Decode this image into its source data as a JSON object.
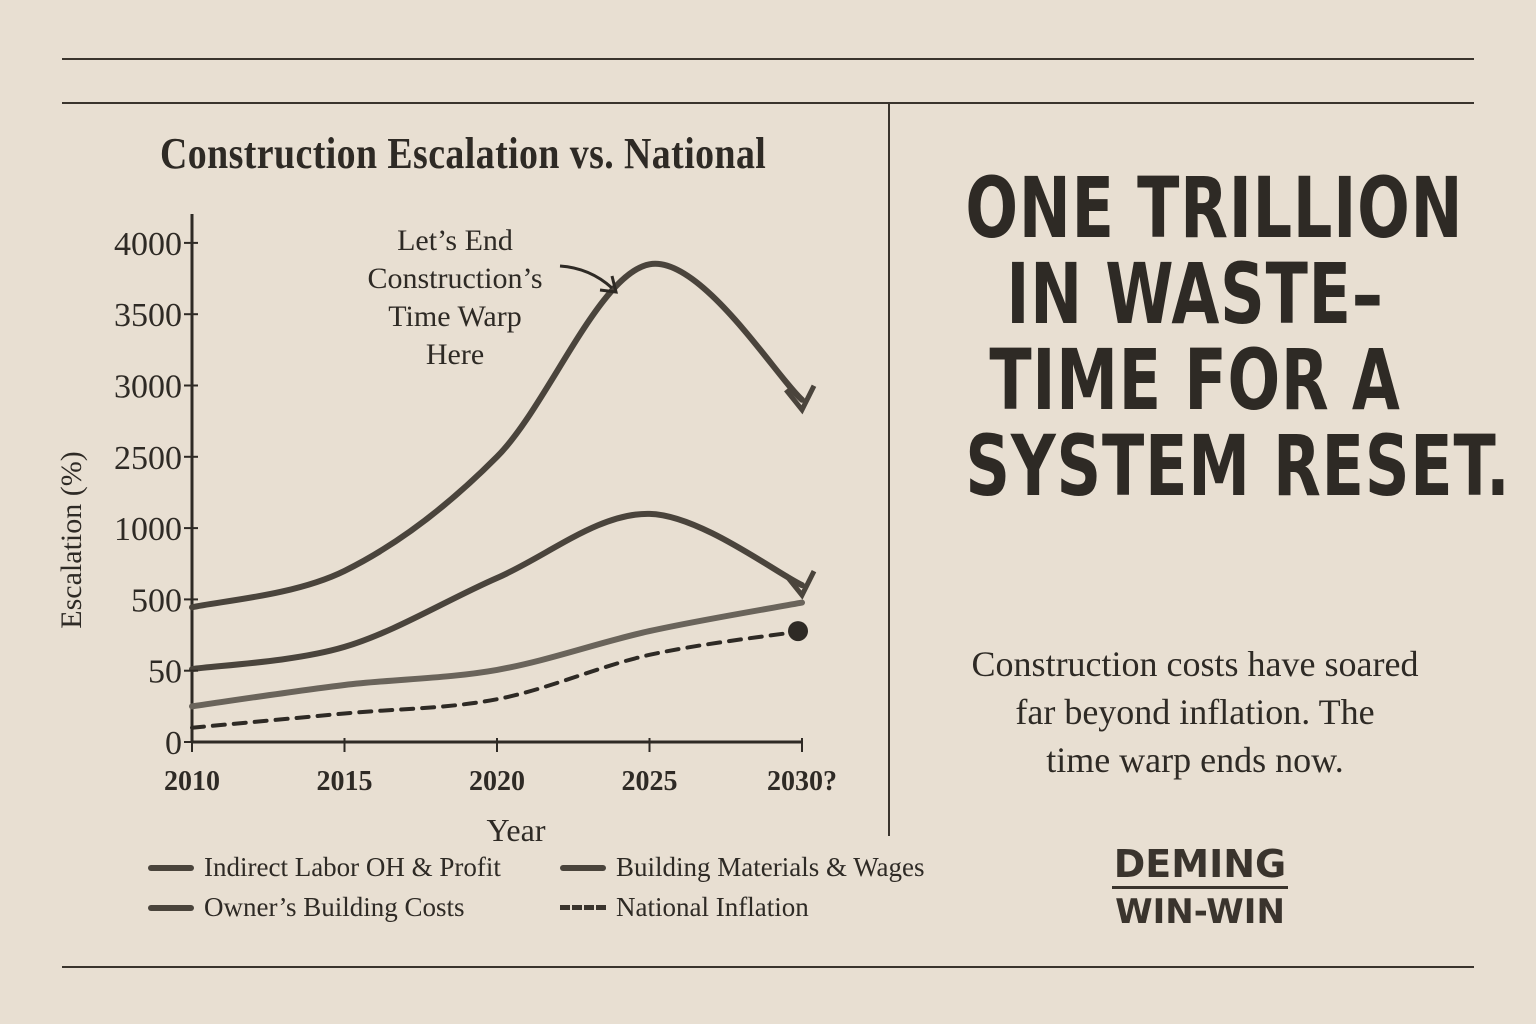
{
  "chart_data": {
    "type": "line",
    "title": "Construction Escalation vs. National",
    "xlabel": "Year",
    "ylabel": "Escalation (%)",
    "x_ticks": [
      "2010",
      "2015",
      "2020",
      "2025",
      "2030?"
    ],
    "y_ticks": [
      "0",
      "50",
      "500",
      "1000",
      "2500",
      "3000",
      "3500",
      "4000"
    ],
    "x": [
      2010,
      2015,
      2020,
      2025,
      2030
    ],
    "series": [
      {
        "name": "Owner's Building Costs",
        "values": [
          450,
          700,
          2500,
          3850,
          2900
        ]
      },
      {
        "name": "Indirect Labor OH & Profit",
        "values": [
          60,
          200,
          650,
          1300,
          600
        ]
      },
      {
        "name": "Building Materials & Wages",
        "values": [
          25,
          40,
          55,
          300,
          480
        ]
      },
      {
        "name": "National Inflation",
        "values": [
          10,
          20,
          30,
          150,
          300
        ]
      }
    ],
    "legend": [
      {
        "label": "Indirect Labor OH & Profit",
        "style": "solid"
      },
      {
        "label": "Building Materials & Wages",
        "style": "solid"
      },
      {
        "label": "Owner’s Building Costs",
        "style": "solid"
      },
      {
        "label": "National Inflation",
        "style": "dashed"
      }
    ],
    "annotation": [
      "Let’s End",
      "Construction’s",
      "Time Warp",
      "Here"
    ],
    "legend_position": "bottom",
    "grid": false
  },
  "headline": [
    "ONE TRILLION",
    "IN WASTE–",
    "TIME FOR A",
    "SYSTEM RESET."
  ],
  "subtext": [
    "Construction costs have soared",
    "far beyond inflation. The",
    "time warp ends now."
  ],
  "brand": {
    "line1": "DEMING",
    "line2": "WIN-WIN"
  },
  "colors": {
    "paper": "#e8dfd2",
    "ink": "#2e2a25",
    "line": "#4a443c"
  }
}
